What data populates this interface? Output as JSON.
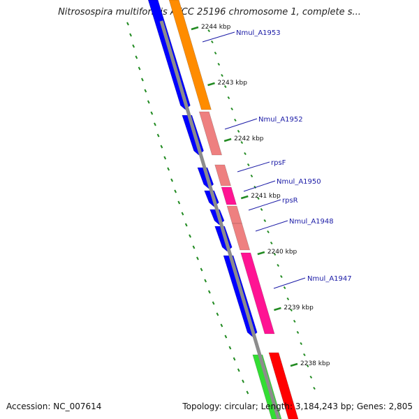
{
  "title": "Nitrosospira multiformis ATCC 25196 chromosome 1, complete s...",
  "footer": {
    "accession": "Accession: NC_007614",
    "summary": "Topology: circular; Length: 3,184,243 bp; Genes: 2,805"
  },
  "colors": {
    "backbone": "#8c8c8c",
    "forward_cds": "#0000ff",
    "orange_feature": "#ff8c00",
    "pink_feature": "#ee8080",
    "magenta_feature": "#ff1493",
    "green_feature": "#33dd33",
    "red_feature": "#ff0000",
    "ticks": "#228b22",
    "label_line": "#1a1aa6"
  },
  "ticks": [
    {
      "label": "2244 kbp"
    },
    {
      "label": "2243 kbp"
    },
    {
      "label": "2242 kbp"
    },
    {
      "label": "2241 kbp"
    },
    {
      "label": "2240 kbp"
    },
    {
      "label": "2239 kbp"
    },
    {
      "label": "2238 kbp"
    }
  ],
  "genes": [
    {
      "label": "Nmul_A1953"
    },
    {
      "label": "Nmul_A1952"
    },
    {
      "label": "rpsF"
    },
    {
      "label": "Nmul_A1950"
    },
    {
      "label": "rpsR"
    },
    {
      "label": "Nmul_A1948"
    },
    {
      "label": "Nmul_A1947"
    }
  ]
}
